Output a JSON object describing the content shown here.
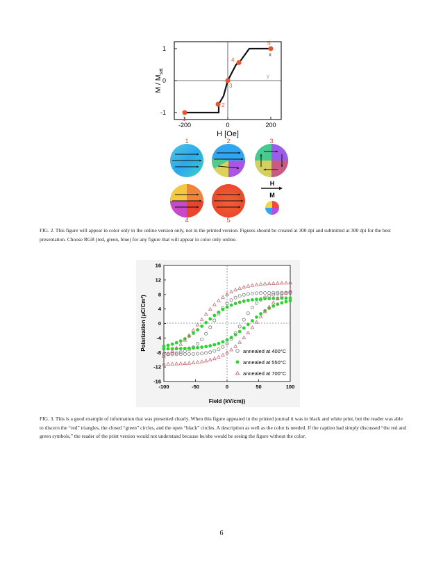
{
  "fig2": {
    "plot": {
      "ylabel": "M / M",
      "ylabel_sub": "sat",
      "xlabel": "H [Oe]",
      "xticks": [
        "-200",
        "0",
        "200"
      ],
      "yticks": [
        "1",
        "0",
        "-1"
      ],
      "axis_marks": [
        "x",
        "y"
      ],
      "points": [
        "1",
        "2",
        "3",
        "4",
        "5"
      ]
    },
    "disks": [
      "1",
      "2",
      "3",
      "4",
      "5"
    ],
    "legend": {
      "h": "H",
      "m": "M"
    },
    "caption": "FIG. 2.  This figure will appear in color only in the online version only, not in the printed version. Figures should be created at 300 dpi and submitted at 300 dpi for the best presentation. Choose RGB (red, green, blue) for any figure that will appear in color only online."
  },
  "chart_data": [
    {
      "type": "line",
      "xlabel": "H [Oe]",
      "ylabel": "M / Msat",
      "xlim": [
        -240,
        240
      ],
      "ylim": [
        -1.3,
        1.3
      ],
      "grid": false,
      "series": [
        {
          "x": [
            -200,
            -40,
            -40,
            -20,
            0,
            40,
            60,
            100,
            200
          ],
          "y": [
            -1,
            -1,
            -0.75,
            -0.45,
            0,
            0.5,
            0.6,
            1,
            1
          ]
        }
      ],
      "points": {
        "labels": [
          "1",
          "2",
          "3",
          "4",
          "5"
        ],
        "x": [
          -200,
          -45,
          0,
          55,
          200
        ],
        "y": [
          -1,
          -0.75,
          0,
          0.55,
          1
        ]
      }
    },
    {
      "type": "scatter",
      "xlabel": "Field (kV/cm))",
      "ylabel": "Polarization (μC/Cm²)",
      "xlim": [
        -100,
        100
      ],
      "ylim": [
        -16,
        16
      ],
      "xticks": [
        "-100",
        "-50",
        "0",
        "50",
        "100"
      ],
      "yticks": [
        "16",
        "12",
        "8",
        "4",
        "0",
        "-4",
        "-8",
        "-12",
        "-16"
      ],
      "legend_position": "bottom-right",
      "series": [
        {
          "name": "annealed at 400°C",
          "marker": "open-circle",
          "color": "#7a7a7a",
          "Ps": 8.5,
          "Pr": 5.5,
          "Ec": 23
        },
        {
          "name": "annealed at 550°C",
          "marker": "filled-circle",
          "color": "#2fd12f",
          "Ps": 7.0,
          "Pr": 4.5,
          "Ec": 35
        },
        {
          "name": "annealed at 700°C",
          "marker": "open-triangle",
          "color": "#c86a78",
          "Ps": 11.2,
          "Pr": 8.0,
          "Ec": 45
        }
      ]
    }
  ],
  "fig3": {
    "caption": "FIG. 3. This is a good example of information that was presented clearly. When this figure appeared in the printed journal it was in black and white print, but the reader was able to discern the “red” triangles, the closed “green” circles, and the open “black” circles. A description as well as the color is needed. If the caption had simply discussed “the red and green symbols,” the reader of the print version would not understand because he/she would be seeing the figure without the color."
  },
  "page_number": "6"
}
